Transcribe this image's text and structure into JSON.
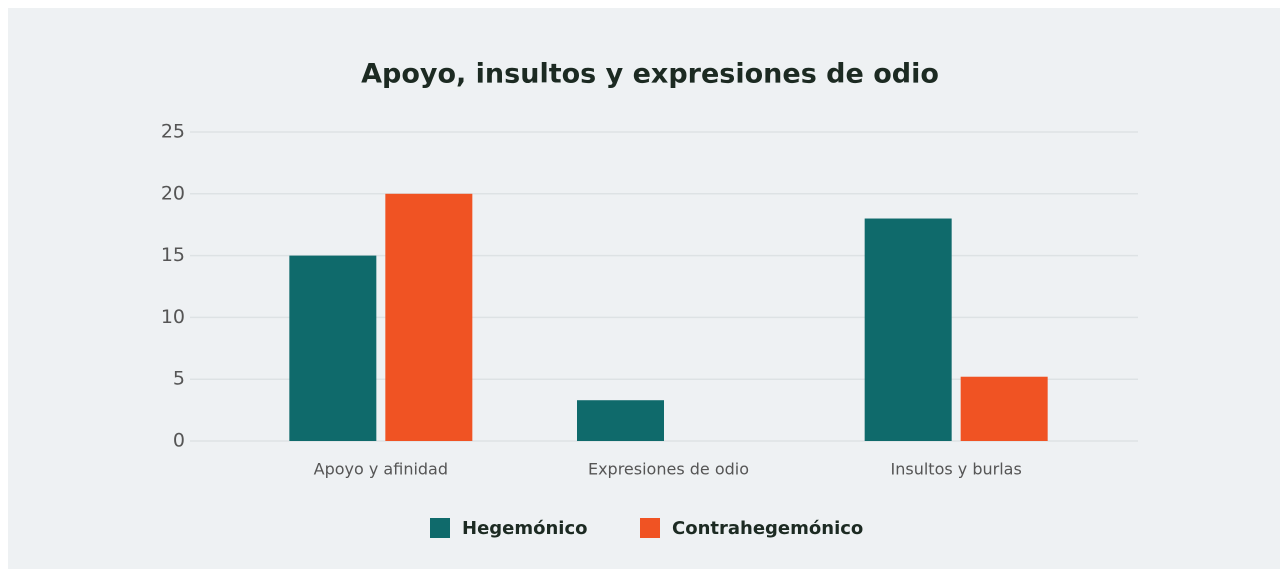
{
  "chart_data": {
    "type": "bar",
    "title": "Apoyo, insultos y expresiones de odio",
    "categories": [
      "Apoyo y afinidad",
      "Expresiones de odio",
      "Insultos y burlas"
    ],
    "series": [
      {
        "name": "Hegemónico",
        "color": "#0f6a6b",
        "values": [
          15,
          3.3,
          18
        ]
      },
      {
        "name": "Contrahegemónico",
        "color": "#f05323",
        "values": [
          20,
          0,
          5.2
        ]
      }
    ],
    "ylim": [
      0,
      25
    ],
    "yticks": [
      0,
      5,
      10,
      15,
      20,
      25
    ],
    "grid": true,
    "legend": "bottom"
  }
}
